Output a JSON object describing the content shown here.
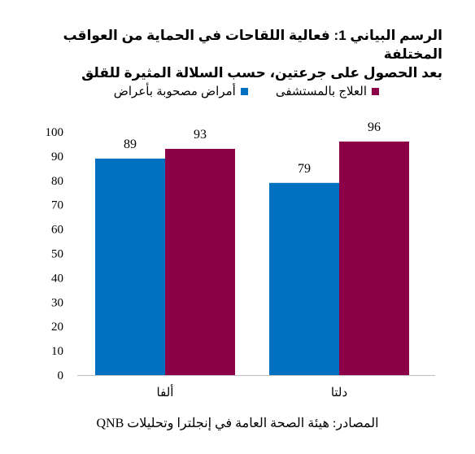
{
  "title_line1": "الرسم البياني 1: فعالية اللقاحات في الحماية من العواقب المختلفة",
  "title_line2": "بعد الحصول على جرعتين، حسب السلالة المثيرة للقلق",
  "source": "المصادر: هيئة الصحة العامة في إنجلترا وتحليلات QNB",
  "chart_data": {
    "type": "bar",
    "categories": [
      "ألفا",
      "دلتا"
    ],
    "series": [
      {
        "name": "أمراض مصحوبة بأعراض",
        "values": [
          89,
          79
        ],
        "color": "#0070c0"
      },
      {
        "name": "العلاج بالمستشفى",
        "values": [
          93,
          96
        ],
        "color": "#8b0046"
      }
    ],
    "ylim": [
      0,
      100
    ],
    "yticks": [
      0,
      10,
      20,
      30,
      40,
      50,
      60,
      70,
      80,
      90,
      100
    ],
    "grid": false,
    "legend": "top"
  }
}
